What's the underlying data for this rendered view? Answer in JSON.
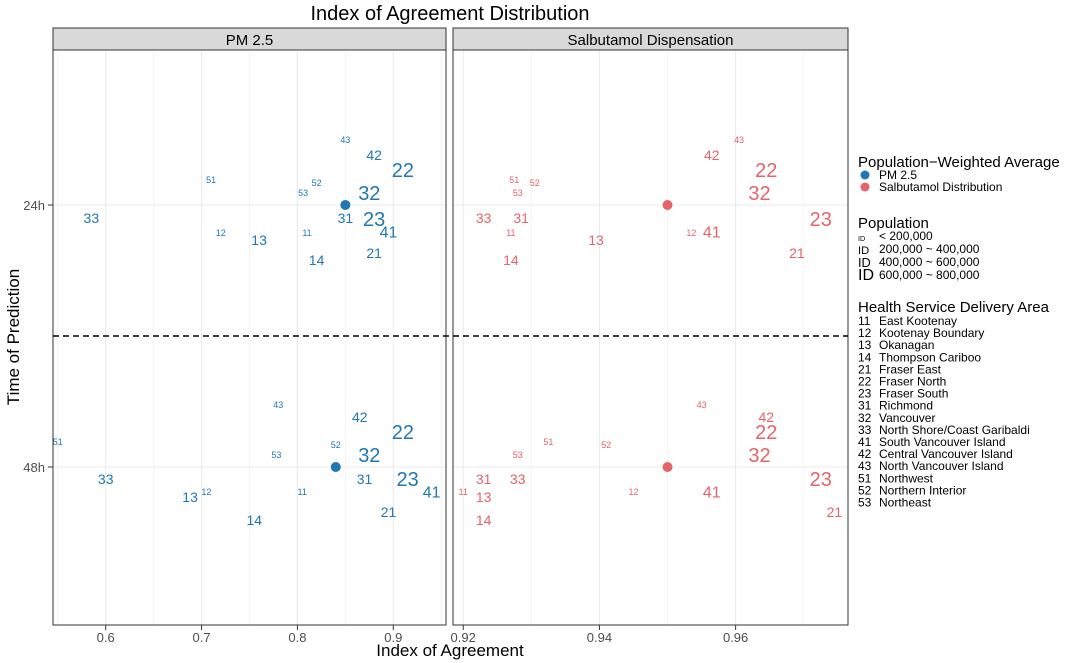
{
  "chart_data": {
    "type": "scatter",
    "title": "Index of Agreement Distribution",
    "xlabel": "Index of Agreement",
    "ylabel": "Time of Prediction",
    "rows": [
      "24h",
      "48h"
    ],
    "point_size_by": "population",
    "panels": [
      {
        "name": "PM 2.5",
        "color": "#1f78b4",
        "xlim": [
          0.545,
          0.955
        ],
        "xticks": [
          0.6,
          0.7,
          0.8,
          0.9
        ],
        "xtick_labels": [
          "0.6",
          "0.7",
          "0.8",
          "0.9"
        ],
        "points": [
          {
            "time": "24h",
            "label": "11",
            "x": 0.81,
            "offset": 0.28,
            "pop": 1
          },
          {
            "time": "24h",
            "label": "12",
            "x": 0.72,
            "offset": 0.28,
            "pop": 1
          },
          {
            "time": "24h",
            "label": "13",
            "x": 0.76,
            "offset": 0.35,
            "pop": 2
          },
          {
            "time": "24h",
            "label": "14",
            "x": 0.82,
            "offset": 0.55,
            "pop": 2
          },
          {
            "time": "24h",
            "label": "21",
            "x": 0.88,
            "offset": 0.48,
            "pop": 2
          },
          {
            "time": "24h",
            "label": "22",
            "x": 0.91,
            "offset": -0.35,
            "pop": 4
          },
          {
            "time": "24h",
            "label": "23",
            "x": 0.88,
            "offset": 0.14,
            "pop": 4
          },
          {
            "time": "24h",
            "label": "31",
            "x": 0.85,
            "offset": 0.13,
            "pop": 2
          },
          {
            "time": "24h",
            "label": "32",
            "x": 0.875,
            "offset": -0.12,
            "pop": 4
          },
          {
            "time": "24h",
            "label": "33",
            "x": 0.585,
            "offset": 0.13,
            "pop": 2
          },
          {
            "time": "24h",
            "label": "41",
            "x": 0.895,
            "offset": 0.27,
            "pop": 3
          },
          {
            "time": "24h",
            "label": "42",
            "x": 0.88,
            "offset": -0.5,
            "pop": 2
          },
          {
            "time": "24h",
            "label": "43",
            "x": 0.85,
            "offset": -0.65,
            "pop": 1
          },
          {
            "time": "24h",
            "label": "51",
            "x": 0.71,
            "offset": -0.25,
            "pop": 1
          },
          {
            "time": "24h",
            "label": "52",
            "x": 0.82,
            "offset": -0.22,
            "pop": 1
          },
          {
            "time": "24h",
            "label": "53",
            "x": 0.806,
            "offset": -0.12,
            "pop": 1
          },
          {
            "time": "48h",
            "label": "11",
            "x": 0.805,
            "offset": 0.25,
            "pop": 1
          },
          {
            "time": "48h",
            "label": "12",
            "x": 0.705,
            "offset": 0.25,
            "pop": 1
          },
          {
            "time": "48h",
            "label": "13",
            "x": 0.688,
            "offset": 0.3,
            "pop": 2
          },
          {
            "time": "48h",
            "label": "14",
            "x": 0.755,
            "offset": 0.53,
            "pop": 2
          },
          {
            "time": "48h",
            "label": "21",
            "x": 0.895,
            "offset": 0.45,
            "pop": 2
          },
          {
            "time": "48h",
            "label": "22",
            "x": 0.91,
            "offset": -0.35,
            "pop": 4
          },
          {
            "time": "48h",
            "label": "23",
            "x": 0.915,
            "offset": 0.12,
            "pop": 4
          },
          {
            "time": "48h",
            "label": "31",
            "x": 0.87,
            "offset": 0.12,
            "pop": 2
          },
          {
            "time": "48h",
            "label": "32",
            "x": 0.875,
            "offset": -0.12,
            "pop": 4
          },
          {
            "time": "48h",
            "label": "33",
            "x": 0.6,
            "offset": 0.12,
            "pop": 2
          },
          {
            "time": "48h",
            "label": "41",
            "x": 0.94,
            "offset": 0.25,
            "pop": 3
          },
          {
            "time": "48h",
            "label": "42",
            "x": 0.865,
            "offset": -0.5,
            "pop": 2
          },
          {
            "time": "48h",
            "label": "43",
            "x": 0.78,
            "offset": -0.62,
            "pop": 1
          },
          {
            "time": "48h",
            "label": "51",
            "x": 0.55,
            "offset": -0.25,
            "pop": 1
          },
          {
            "time": "48h",
            "label": "52",
            "x": 0.84,
            "offset": -0.22,
            "pop": 1
          },
          {
            "time": "48h",
            "label": "53",
            "x": 0.778,
            "offset": -0.12,
            "pop": 1
          }
        ],
        "averages": [
          {
            "time": "24h",
            "x": 0.85
          },
          {
            "time": "48h",
            "x": 0.84
          }
        ]
      },
      {
        "name": "Salbutamol Dispensation",
        "color": "#e5636b",
        "xlim": [
          0.9185,
          0.9765
        ],
        "xticks": [
          0.92,
          0.94,
          0.96
        ],
        "xtick_labels": [
          "0.92",
          "0.94",
          "0.96"
        ],
        "points": [
          {
            "time": "24h",
            "label": "11",
            "x": 0.927,
            "offset": 0.28,
            "pop": 1
          },
          {
            "time": "24h",
            "label": "12",
            "x": 0.9535,
            "offset": 0.28,
            "pop": 1
          },
          {
            "time": "24h",
            "label": "13",
            "x": 0.9395,
            "offset": 0.35,
            "pop": 2
          },
          {
            "time": "24h",
            "label": "14",
            "x": 0.927,
            "offset": 0.55,
            "pop": 2
          },
          {
            "time": "24h",
            "label": "21",
            "x": 0.969,
            "offset": 0.48,
            "pop": 2
          },
          {
            "time": "24h",
            "label": "22",
            "x": 0.9645,
            "offset": -0.35,
            "pop": 4
          },
          {
            "time": "24h",
            "label": "23",
            "x": 0.9725,
            "offset": 0.14,
            "pop": 4
          },
          {
            "time": "24h",
            "label": "31",
            "x": 0.9285,
            "offset": 0.13,
            "pop": 2
          },
          {
            "time": "24h",
            "label": "32",
            "x": 0.9635,
            "offset": -0.12,
            "pop": 4
          },
          {
            "time": "24h",
            "label": "33",
            "x": 0.923,
            "offset": 0.13,
            "pop": 2
          },
          {
            "time": "24h",
            "label": "41",
            "x": 0.9565,
            "offset": 0.27,
            "pop": 3
          },
          {
            "time": "24h",
            "label": "42",
            "x": 0.9565,
            "offset": -0.5,
            "pop": 2
          },
          {
            "time": "24h",
            "label": "43",
            "x": 0.9605,
            "offset": -0.65,
            "pop": 1
          },
          {
            "time": "24h",
            "label": "51",
            "x": 0.9275,
            "offset": -0.25,
            "pop": 1
          },
          {
            "time": "24h",
            "label": "52",
            "x": 0.9305,
            "offset": -0.22,
            "pop": 1
          },
          {
            "time": "24h",
            "label": "53",
            "x": 0.928,
            "offset": -0.12,
            "pop": 1
          },
          {
            "time": "48h",
            "label": "11",
            "x": 0.92,
            "offset": 0.25,
            "pop": 1
          },
          {
            "time": "48h",
            "label": "12",
            "x": 0.945,
            "offset": 0.25,
            "pop": 1
          },
          {
            "time": "48h",
            "label": "13",
            "x": 0.923,
            "offset": 0.3,
            "pop": 2
          },
          {
            "time": "48h",
            "label": "14",
            "x": 0.923,
            "offset": 0.53,
            "pop": 2
          },
          {
            "time": "48h",
            "label": "21",
            "x": 0.9745,
            "offset": 0.45,
            "pop": 2
          },
          {
            "time": "48h",
            "label": "22",
            "x": 0.9645,
            "offset": -0.35,
            "pop": 4
          },
          {
            "time": "48h",
            "label": "23",
            "x": 0.9725,
            "offset": 0.12,
            "pop": 4
          },
          {
            "time": "48h",
            "label": "31",
            "x": 0.923,
            "offset": 0.12,
            "pop": 2
          },
          {
            "time": "48h",
            "label": "32",
            "x": 0.9635,
            "offset": -0.12,
            "pop": 4
          },
          {
            "time": "48h",
            "label": "33",
            "x": 0.928,
            "offset": 0.12,
            "pop": 2
          },
          {
            "time": "48h",
            "label": "41",
            "x": 0.9565,
            "offset": 0.25,
            "pop": 3
          },
          {
            "time": "48h",
            "label": "42",
            "x": 0.9645,
            "offset": -0.5,
            "pop": 2
          },
          {
            "time": "48h",
            "label": "43",
            "x": 0.955,
            "offset": -0.62,
            "pop": 1
          },
          {
            "time": "48h",
            "label": "51",
            "x": 0.9325,
            "offset": -0.25,
            "pop": 1
          },
          {
            "time": "48h",
            "label": "52",
            "x": 0.941,
            "offset": -0.22,
            "pop": 1
          },
          {
            "time": "48h",
            "label": "53",
            "x": 0.928,
            "offset": -0.12,
            "pop": 1
          }
        ],
        "averages": [
          {
            "time": "24h",
            "x": 0.95
          },
          {
            "time": "48h",
            "x": 0.95
          }
        ]
      }
    ],
    "legend": {
      "average_title": "Population−Weighted Average",
      "average_items": [
        {
          "label": "PM 2.5",
          "color": "#1f78b4"
        },
        {
          "label": "Salbutamol Distribution",
          "color": "#e5636b"
        }
      ],
      "population_title": "Population",
      "population_symbol": "ID",
      "population_items": [
        {
          "label": "< 200,000",
          "pop": 1
        },
        {
          "label": "200,000 ~ 400,000",
          "pop": 2
        },
        {
          "label": "400,000 ~ 600,000",
          "pop": 3
        },
        {
          "label": "600,000 ~ 800,000",
          "pop": 4
        }
      ],
      "hsda_title": "Health Service Delivery Area",
      "hsda_items": [
        {
          "code": "11",
          "name": "East Kootenay"
        },
        {
          "code": "12",
          "name": "Kootenay Boundary"
        },
        {
          "code": "13",
          "name": "Okanagan"
        },
        {
          "code": "14",
          "name": "Thompson Cariboo"
        },
        {
          "code": "21",
          "name": "Fraser East"
        },
        {
          "code": "22",
          "name": "Fraser North"
        },
        {
          "code": "23",
          "name": "Fraser South"
        },
        {
          "code": "31",
          "name": "Richmond"
        },
        {
          "code": "32",
          "name": "Vancouver"
        },
        {
          "code": "33",
          "name": "North Shore/Coast Garibaldi"
        },
        {
          "code": "41",
          "name": "South Vancouver Island"
        },
        {
          "code": "42",
          "name": "Central Vancouver Island"
        },
        {
          "code": "43",
          "name": "North Vancouver Island"
        },
        {
          "code": "51",
          "name": "Northwest"
        },
        {
          "code": "52",
          "name": "Northern Interior"
        },
        {
          "code": "53",
          "name": "Northeast"
        }
      ]
    }
  }
}
